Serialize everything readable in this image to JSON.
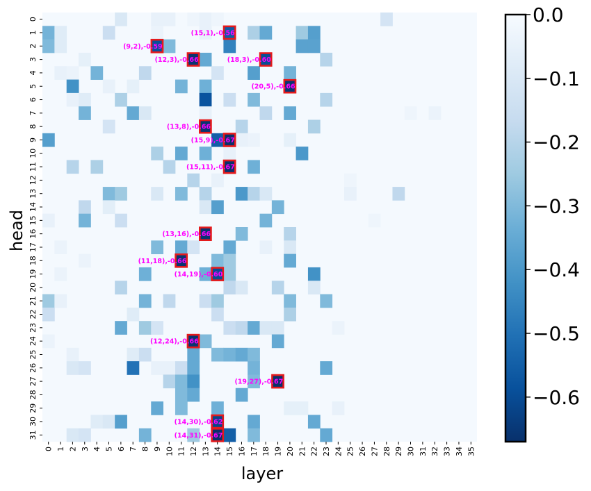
{
  "chart_data": {
    "type": "heatmap",
    "xlabel": "layer",
    "ylabel": "head",
    "n_layers": 36,
    "n_heads": 32,
    "x_ticks": [
      "0",
      "1",
      "2",
      "3",
      "4",
      "5",
      "6",
      "7",
      "8",
      "9",
      "10",
      "11",
      "12",
      "13",
      "14",
      "15",
      "16",
      "17",
      "18",
      "19",
      "20",
      "21",
      "22",
      "23",
      "24",
      "25",
      "26",
      "27",
      "28",
      "29",
      "30",
      "31",
      "32",
      "33",
      "34",
      "35"
    ],
    "y_ticks": [
      "0",
      "1",
      "2",
      "3",
      "4",
      "5",
      "6",
      "7",
      "8",
      "9",
      "10",
      "11",
      "12",
      "13",
      "14",
      "15",
      "16",
      "17",
      "18",
      "19",
      "20",
      "21",
      "22",
      "23",
      "24",
      "25",
      "26",
      "27",
      "28",
      "29",
      "30",
      "31"
    ],
    "colormap": "Blues_r",
    "vmin": -0.67,
    "vmax": 0.0,
    "colorbar_ticks": [
      "0.0",
      "−0.1",
      "−0.2",
      "−0.3",
      "−0.4",
      "−0.5",
      "−0.6"
    ],
    "colorbar_tick_values": [
      0.0,
      -0.1,
      -0.2,
      -0.3,
      -0.4,
      -0.5,
      -0.6
    ],
    "highlight_color": "#e41a1c",
    "annotation_color": "#ff00ff",
    "annotations": [
      {
        "layer": 15,
        "head": 1,
        "value": -0.56,
        "label": "(15,1),-0.56"
      },
      {
        "layer": 9,
        "head": 2,
        "value": -0.59,
        "label": "(9,2),-0.59"
      },
      {
        "layer": 12,
        "head": 3,
        "value": -0.66,
        "label": "(12,3),-0.66"
      },
      {
        "layer": 18,
        "head": 3,
        "value": -0.6,
        "label": "(18,3),-0.60"
      },
      {
        "layer": 20,
        "head": 5,
        "value": -0.66,
        "label": "(20,5),-0.66"
      },
      {
        "layer": 13,
        "head": 8,
        "value": -0.66,
        "label": "(13,8),-0.66"
      },
      {
        "layer": 15,
        "head": 9,
        "value": -0.67,
        "label": "(15,9),-0.67"
      },
      {
        "layer": 15,
        "head": 11,
        "value": -0.67,
        "label": "(15,11),-0.67"
      },
      {
        "layer": 13,
        "head": 16,
        "value": -0.66,
        "label": "(13,16),-0.66"
      },
      {
        "layer": 11,
        "head": 18,
        "value": -0.66,
        "label": "(11,18),-0.66"
      },
      {
        "layer": 14,
        "head": 19,
        "value": -0.6,
        "label": "(14,19),-0.60"
      },
      {
        "layer": 12,
        "head": 24,
        "value": -0.66,
        "label": "(12,24),-0.66"
      },
      {
        "layer": 19,
        "head": 27,
        "value": -0.67,
        "label": "(19,27),-0.67"
      },
      {
        "layer": 14,
        "head": 30,
        "value": -0.62,
        "label": "(14,30),-0.62"
      },
      {
        "layer": 14,
        "head": 31,
        "value": -0.67,
        "label": "(14,31),-0.67"
      }
    ],
    "cells": [
      [
        0,
        6,
        -0.1
      ],
      [
        0,
        9,
        -0.05
      ],
      [
        0,
        10,
        -0.05
      ],
      [
        0,
        12,
        -0.03
      ],
      [
        0,
        13,
        -0.05
      ],
      [
        0,
        14,
        -0.03
      ],
      [
        0,
        28,
        -0.12
      ],
      [
        1,
        0,
        -0.32
      ],
      [
        1,
        1,
        -0.08
      ],
      [
        1,
        5,
        -0.15
      ],
      [
        1,
        9,
        -0.04
      ],
      [
        1,
        13,
        -0.05
      ],
      [
        1,
        15,
        -0.56
      ],
      [
        1,
        17,
        -0.22
      ],
      [
        1,
        18,
        -0.35
      ],
      [
        1,
        21,
        -0.25
      ],
      [
        1,
        22,
        -0.38
      ],
      [
        2,
        0,
        -0.3
      ],
      [
        2,
        1,
        -0.08
      ],
      [
        2,
        9,
        -0.59
      ],
      [
        2,
        10,
        -0.3
      ],
      [
        2,
        15,
        -0.46
      ],
      [
        2,
        21,
        -0.37
      ],
      [
        2,
        22,
        -0.37
      ],
      [
        3,
        3,
        -0.06
      ],
      [
        3,
        12,
        -0.66
      ],
      [
        3,
        13,
        -0.35
      ],
      [
        3,
        18,
        -0.6
      ],
      [
        3,
        23,
        -0.2
      ],
      [
        4,
        1,
        -0.05
      ],
      [
        4,
        2,
        -0.04
      ],
      [
        4,
        4,
        -0.32
      ],
      [
        4,
        8,
        -0.18
      ],
      [
        4,
        14,
        -0.12
      ],
      [
        4,
        17,
        -0.38
      ],
      [
        4,
        20,
        -0.32
      ],
      [
        5,
        2,
        -0.42
      ],
      [
        5,
        5,
        -0.05
      ],
      [
        5,
        7,
        -0.06
      ],
      [
        5,
        11,
        -0.32
      ],
      [
        5,
        13,
        -0.33
      ],
      [
        5,
        20,
        -0.66
      ],
      [
        6,
        2,
        -0.05
      ],
      [
        6,
        3,
        -0.08
      ],
      [
        6,
        6,
        -0.22
      ],
      [
        6,
        13,
        -0.58
      ],
      [
        6,
        15,
        -0.15
      ],
      [
        6,
        17,
        -0.3
      ],
      [
        6,
        23,
        -0.2
      ],
      [
        7,
        3,
        -0.32
      ],
      [
        7,
        7,
        -0.35
      ],
      [
        7,
        8,
        -0.1
      ],
      [
        7,
        13,
        -0.05
      ],
      [
        7,
        18,
        -0.18
      ],
      [
        7,
        20,
        -0.35
      ],
      [
        7,
        30,
        -0.03
      ],
      [
        7,
        32,
        -0.04
      ],
      [
        8,
        5,
        -0.12
      ],
      [
        8,
        13,
        -0.66
      ],
      [
        8,
        16,
        -0.2
      ],
      [
        8,
        22,
        -0.22
      ],
      [
        9,
        0,
        -0.38
      ],
      [
        9,
        14,
        -0.55
      ],
      [
        9,
        15,
        -0.67
      ],
      [
        9,
        16,
        -0.05
      ],
      [
        9,
        17,
        -0.04
      ],
      [
        9,
        20,
        -0.06
      ],
      [
        10,
        9,
        -0.22
      ],
      [
        10,
        11,
        -0.35
      ],
      [
        10,
        13,
        -0.33
      ],
      [
        10,
        15,
        -0.05
      ],
      [
        10,
        21,
        -0.4
      ],
      [
        11,
        2,
        -0.2
      ],
      [
        11,
        4,
        -0.22
      ],
      [
        11,
        10,
        -0.2
      ],
      [
        11,
        15,
        -0.67
      ],
      [
        11,
        17,
        -0.33
      ],
      [
        12,
        12,
        -0.2
      ],
      [
        12,
        14,
        -0.05
      ],
      [
        12,
        25,
        -0.03
      ],
      [
        13,
        5,
        -0.3
      ],
      [
        13,
        6,
        -0.25
      ],
      [
        13,
        9,
        -0.1
      ],
      [
        13,
        11,
        -0.3
      ],
      [
        13,
        13,
        -0.2
      ],
      [
        13,
        16,
        -0.4
      ],
      [
        13,
        17,
        -0.2
      ],
      [
        13,
        18,
        -0.1
      ],
      [
        13,
        25,
        -0.05
      ],
      [
        13,
        29,
        -0.18
      ],
      [
        14,
        3,
        -0.18
      ],
      [
        14,
        5,
        -0.07
      ],
      [
        14,
        13,
        -0.1
      ],
      [
        14,
        14,
        -0.38
      ],
      [
        14,
        19,
        -0.32
      ],
      [
        15,
        0,
        -0.05
      ],
      [
        15,
        3,
        -0.32
      ],
      [
        15,
        6,
        -0.15
      ],
      [
        15,
        18,
        -0.32
      ],
      [
        15,
        27,
        -0.03
      ],
      [
        16,
        13,
        -0.66
      ],
      [
        16,
        16,
        -0.3
      ],
      [
        16,
        20,
        -0.2
      ],
      [
        17,
        1,
        -0.04
      ],
      [
        17,
        9,
        -0.3
      ],
      [
        17,
        11,
        -0.35
      ],
      [
        17,
        12,
        -0.12
      ],
      [
        17,
        15,
        -0.35
      ],
      [
        17,
        18,
        -0.05
      ],
      [
        17,
        20,
        -0.1
      ],
      [
        18,
        3,
        -0.04
      ],
      [
        18,
        11,
        -0.66
      ],
      [
        18,
        14,
        -0.3
      ],
      [
        18,
        15,
        -0.25
      ],
      [
        18,
        20,
        -0.35
      ],
      [
        19,
        1,
        -0.04
      ],
      [
        19,
        8,
        -0.33
      ],
      [
        19,
        13,
        -0.33
      ],
      [
        19,
        14,
        -0.6
      ],
      [
        19,
        15,
        -0.25
      ],
      [
        19,
        22,
        -0.42
      ],
      [
        20,
        6,
        -0.2
      ],
      [
        20,
        15,
        -0.18
      ],
      [
        20,
        16,
        -0.1
      ],
      [
        20,
        19,
        -0.2
      ],
      [
        20,
        22,
        -0.1
      ],
      [
        21,
        0,
        -0.25
      ],
      [
        21,
        1,
        -0.05
      ],
      [
        21,
        8,
        -0.32
      ],
      [
        21,
        10,
        -0.18
      ],
      [
        21,
        13,
        -0.15
      ],
      [
        21,
        14,
        -0.25
      ],
      [
        21,
        20,
        -0.3
      ],
      [
        21,
        23,
        -0.3
      ],
      [
        22,
        0,
        -0.15
      ],
      [
        22,
        7,
        -0.08
      ],
      [
        22,
        14,
        -0.15
      ],
      [
        22,
        20,
        -0.22
      ],
      [
        23,
        6,
        -0.35
      ],
      [
        23,
        8,
        -0.25
      ],
      [
        23,
        9,
        -0.12
      ],
      [
        23,
        15,
        -0.15
      ],
      [
        23,
        16,
        -0.18
      ],
      [
        23,
        17,
        -0.35
      ],
      [
        23,
        18,
        -0.1
      ],
      [
        23,
        19,
        -0.1
      ],
      [
        23,
        24,
        -0.04
      ],
      [
        24,
        0,
        -0.04
      ],
      [
        24,
        12,
        -0.66
      ],
      [
        24,
        13,
        -0.3
      ],
      [
        24,
        19,
        -0.35
      ],
      [
        25,
        2,
        -0.05
      ],
      [
        25,
        7,
        -0.08
      ],
      [
        25,
        8,
        -0.15
      ],
      [
        25,
        12,
        -0.35
      ],
      [
        25,
        14,
        -0.3
      ],
      [
        25,
        15,
        -0.32
      ],
      [
        25,
        16,
        -0.35
      ],
      [
        25,
        17,
        -0.3
      ],
      [
        26,
        2,
        -0.1
      ],
      [
        26,
        3,
        -0.12
      ],
      [
        26,
        7,
        -0.5
      ],
      [
        26,
        9,
        -0.05
      ],
      [
        26,
        10,
        -0.05
      ],
      [
        26,
        11,
        -0.15
      ],
      [
        26,
        12,
        -0.35
      ],
      [
        26,
        17,
        -0.32
      ],
      [
        26,
        23,
        -0.35
      ],
      [
        27,
        10,
        -0.2
      ],
      [
        27,
        11,
        -0.3
      ],
      [
        27,
        12,
        -0.42
      ],
      [
        27,
        17,
        -0.3
      ],
      [
        27,
        19,
        -0.67
      ],
      [
        28,
        11,
        -0.3
      ],
      [
        28,
        12,
        -0.35
      ],
      [
        28,
        16,
        -0.35
      ],
      [
        29,
        9,
        -0.35
      ],
      [
        29,
        11,
        -0.3
      ],
      [
        29,
        14,
        -0.33
      ],
      [
        29,
        20,
        -0.06
      ],
      [
        29,
        21,
        -0.06
      ],
      [
        29,
        24,
        -0.05
      ],
      [
        30,
        4,
        -0.08
      ],
      [
        30,
        5,
        -0.1
      ],
      [
        30,
        6,
        -0.38
      ],
      [
        30,
        14,
        -0.62
      ],
      [
        30,
        17,
        -0.35
      ],
      [
        30,
        22,
        -0.35
      ],
      [
        31,
        2,
        -0.1
      ],
      [
        31,
        3,
        -0.12
      ],
      [
        31,
        8,
        -0.32
      ],
      [
        31,
        12,
        -0.25
      ],
      [
        31,
        14,
        -0.67
      ],
      [
        31,
        15,
        -0.55
      ],
      [
        31,
        17,
        -0.3
      ],
      [
        31,
        23,
        -0.35
      ]
    ]
  }
}
